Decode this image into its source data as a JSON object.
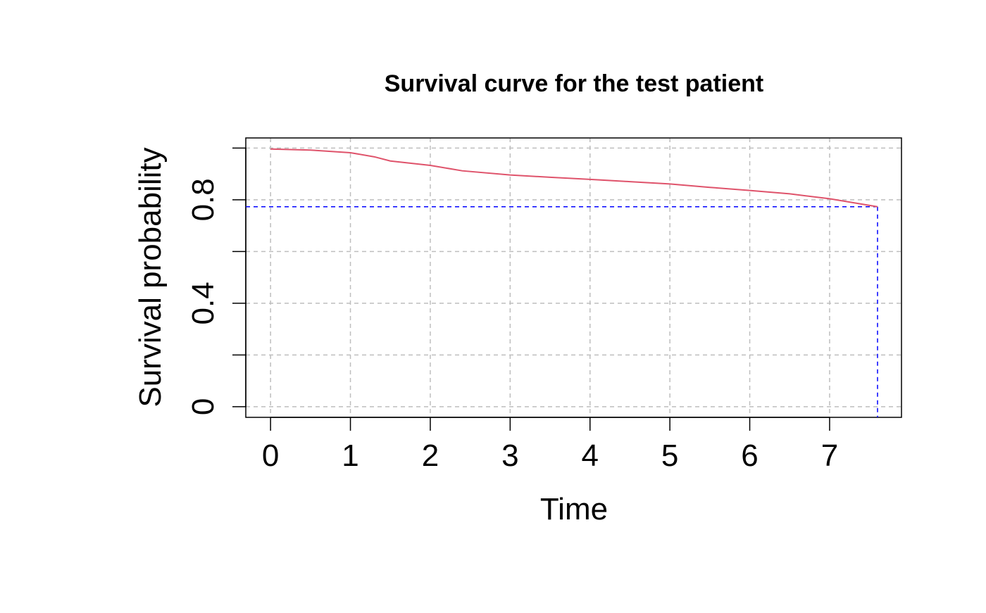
{
  "chart_data": {
    "type": "line",
    "title": "Survival curve for the test patient",
    "xlabel": "Time",
    "ylabel": "Survival probability",
    "x": [
      0,
      0.5,
      1,
      1.3,
      1.5,
      2,
      2.4,
      3,
      3.5,
      4,
      4.5,
      5,
      5.5,
      6,
      6.5,
      7,
      7.6
    ],
    "series": [
      {
        "name": "Survival",
        "color": "#df536b",
        "values": [
          0.996,
          0.992,
          0.982,
          0.966,
          0.95,
          0.933,
          0.912,
          0.896,
          0.887,
          0.879,
          0.87,
          0.861,
          0.848,
          0.836,
          0.823,
          0.804,
          0.773
        ]
      }
    ],
    "reference": {
      "x": 7.6,
      "y": 0.773,
      "color": "#0000ff"
    },
    "xlim": [
      -0.31,
      7.9
    ],
    "ylim": [
      -0.041,
      1.039
    ],
    "xticks": [
      0,
      1,
      2,
      3,
      4,
      5,
      6,
      7
    ],
    "yticks": [
      0,
      {
        "value": 0.2,
        "label": null
      },
      0.4,
      {
        "value": 0.6,
        "label": null
      },
      0.8,
      {
        "value": 1.0,
        "label": null
      }
    ],
    "grid": true
  }
}
